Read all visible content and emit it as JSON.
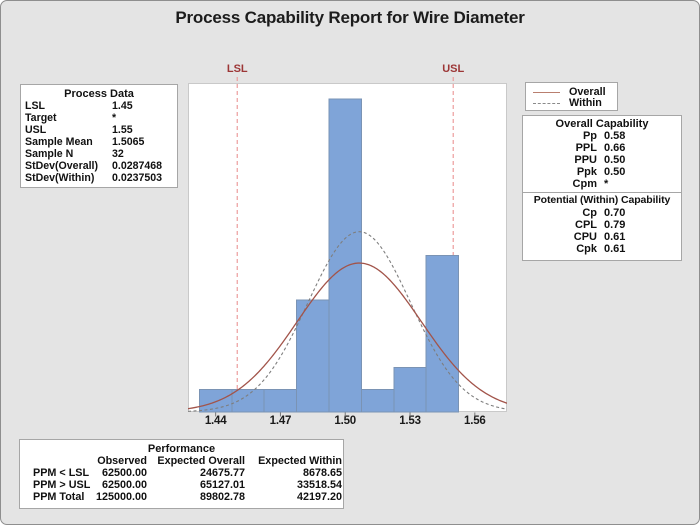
{
  "title": "Process Capability Report for Wire Diameter",
  "process_data": {
    "header": "Process Data",
    "rows": [
      {
        "label": "LSL",
        "value": "1.45"
      },
      {
        "label": "Target",
        "value": "*"
      },
      {
        "label": "USL",
        "value": "1.55"
      },
      {
        "label": "Sample Mean",
        "value": "1.5065"
      },
      {
        "label": "Sample N",
        "value": "32"
      },
      {
        "label": "StDev(Overall)",
        "value": "0.0287468"
      },
      {
        "label": "StDev(Within)",
        "value": "0.0237503"
      }
    ]
  },
  "legend": {
    "items": [
      {
        "label": "Overall",
        "style": "solid",
        "color": "#B97F6F"
      },
      {
        "label": "Within",
        "style": "dashed",
        "color": "#8A8A8A"
      }
    ]
  },
  "overall_capability": {
    "header": "Overall Capability",
    "rows": [
      {
        "name": "Pp",
        "value": "0.58"
      },
      {
        "name": "PPL",
        "value": "0.66"
      },
      {
        "name": "PPU",
        "value": "0.50"
      },
      {
        "name": "Ppk",
        "value": "0.50"
      },
      {
        "name": "Cpm",
        "value": "*"
      }
    ]
  },
  "within_capability": {
    "header": "Potential (Within) Capability",
    "rows": [
      {
        "name": "Cp",
        "value": "0.70"
      },
      {
        "name": "CPL",
        "value": "0.79"
      },
      {
        "name": "CPU",
        "value": "0.61"
      },
      {
        "name": "Cpk",
        "value": "0.61"
      }
    ]
  },
  "performance": {
    "header": "Performance",
    "columns": [
      "Observed",
      "Expected Overall",
      "Expected Within"
    ],
    "rows": [
      {
        "label": "PPM < LSL",
        "values": [
          "62500.00",
          "24675.77",
          "8678.65"
        ]
      },
      {
        "label": "PPM > USL",
        "values": [
          "62500.00",
          "65127.01",
          "33518.54"
        ]
      },
      {
        "label": "PPM Total",
        "values": [
          "125000.00",
          "89802.78",
          "42197.20"
        ]
      }
    ]
  },
  "chart_data": {
    "type": "bar",
    "subtype": "capability-histogram-with-normal-curves",
    "x_domain": [
      1.4272,
      1.5749
    ],
    "bin_start": 1.4325,
    "bin_width": 0.015,
    "bin_centers": [
      1.44,
      1.455,
      1.47,
      1.485,
      1.5,
      1.515,
      1.53,
      1.545
    ],
    "counts": [
      1,
      1,
      1,
      5,
      14,
      1,
      2,
      7
    ],
    "y_max_units": 14.7,
    "sample_n": 32,
    "mean": 1.5065,
    "stdev_overall": 0.0287468,
    "stdev_within": 0.0237503,
    "lsl": {
      "label": "LSL",
      "value": 1.45
    },
    "usl": {
      "label": "USL",
      "value": 1.55
    },
    "x_ticks": [
      {
        "value": 1.44,
        "label": "1.44"
      },
      {
        "value": 1.47,
        "label": "1.47"
      },
      {
        "value": 1.5,
        "label": "1.50"
      },
      {
        "value": 1.53,
        "label": "1.53"
      },
      {
        "value": 1.56,
        "label": "1.56"
      }
    ],
    "curves": [
      {
        "name": "Overall",
        "sigma": 0.0287468,
        "dash": "",
        "color": "#A2544A",
        "width": 1.3
      },
      {
        "name": "Within",
        "sigma": 0.0237503,
        "dash": "3 2.5",
        "color": "#7E7E7E",
        "width": 1.1
      }
    ],
    "colors": {
      "bar_fill": "#7FA4D8",
      "bar_border": "#7A93B4",
      "spec_line": "#EC9C9C",
      "spec_label": "#9C3636",
      "axis_tick": "#777777",
      "plot_border": "#C9C9C9",
      "plot_bg": "#FFFFFF"
    },
    "grid": false,
    "legend_position": "upper-right-outside",
    "ylabel": "",
    "xlabel": ""
  }
}
